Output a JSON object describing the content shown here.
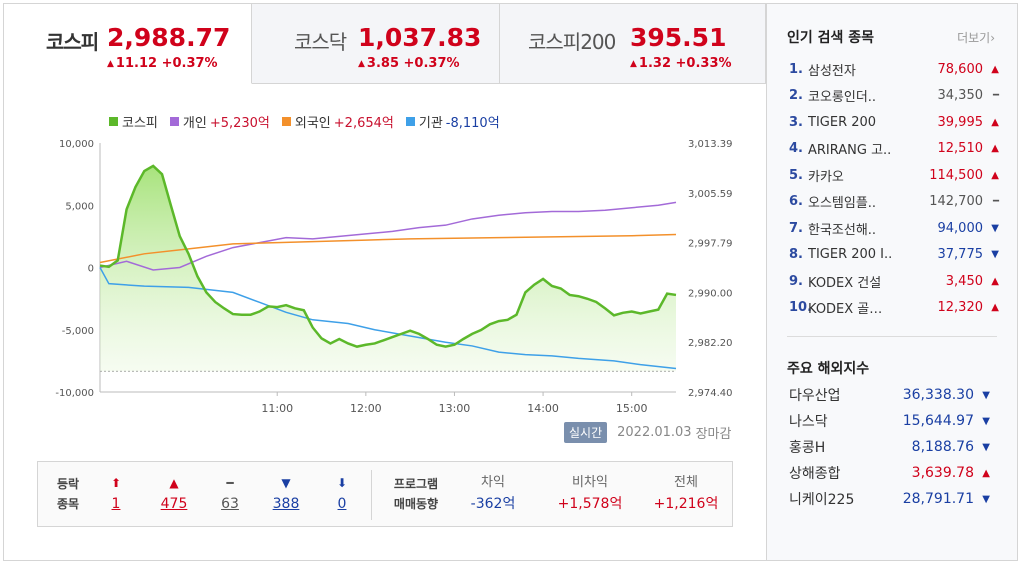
{
  "tabs": [
    {
      "name": "코스피",
      "value": "2,988.77",
      "change": "11.12 +0.37%",
      "dir": "up"
    },
    {
      "name": "코스닥",
      "value": "1,037.83",
      "change": "3.85 +0.37%",
      "dir": "up"
    },
    {
      "name": "코스피200",
      "value": "395.51",
      "change": "1.32 +0.33%",
      "dir": "up"
    }
  ],
  "legend": [
    {
      "name": "코스피",
      "value": "",
      "color": "#5cb82a"
    },
    {
      "name": "개인",
      "value": "+5,230억",
      "color": "#a36ad8"
    },
    {
      "name": "외국인",
      "value": "+2,654억",
      "color": "#f3902b"
    },
    {
      "name": "기관",
      "value": "-8,110억",
      "color": "#3ea0e8"
    }
  ],
  "chart_foot": {
    "realtime": "실시간",
    "date": "2022.01.03",
    "status": "장마감"
  },
  "chart_data": {
    "type": "line",
    "x_ticks": [
      "11:00",
      "12:00",
      "13:00",
      "14:00",
      "15:00"
    ],
    "y_left_ticks": [
      "10,000",
      "5,000",
      "0",
      "-5,000",
      "-10,000"
    ],
    "y_right_ticks": [
      "3,013.39",
      "3,005.59",
      "2,997.79",
      "2,990.00",
      "2,982.20",
      "2,974.40"
    ],
    "y_left_range": [
      -10000,
      10000
    ],
    "y_right_range": [
      2974.4,
      3013.39
    ],
    "x_range": [
      9.0,
      15.5
    ],
    "kospi_baseline": 2977.65,
    "series": [
      {
        "name": "코스피",
        "axis": "right",
        "color": "#5cb82a",
        "x": [
          9.0,
          9.1,
          9.2,
          9.3,
          9.4,
          9.5,
          9.6,
          9.7,
          9.8,
          9.9,
          10.0,
          10.1,
          10.2,
          10.3,
          10.4,
          10.5,
          10.6,
          10.7,
          10.8,
          10.9,
          11.0,
          11.1,
          11.2,
          11.3,
          11.4,
          11.5,
          11.6,
          11.7,
          11.8,
          11.9,
          12.0,
          12.1,
          12.2,
          12.3,
          12.4,
          12.5,
          12.6,
          12.7,
          12.8,
          12.9,
          13.0,
          13.1,
          13.2,
          13.3,
          13.4,
          13.5,
          13.6,
          13.7,
          13.8,
          13.9,
          14.0,
          14.1,
          14.2,
          14.3,
          14.4,
          14.5,
          14.6,
          14.7,
          14.8,
          14.9,
          15.0,
          15.1,
          15.2,
          15.3,
          15.4,
          15.5
        ],
        "y": [
          2994.2,
          2994.0,
          2995.0,
          3003.0,
          3006.5,
          3009.0,
          3009.8,
          3008.5,
          3003.6,
          2998.8,
          2996.0,
          2992.5,
          2990.0,
          2988.5,
          2987.5,
          2986.6,
          2986.5,
          2986.5,
          2987.0,
          2987.8,
          2987.7,
          2988.0,
          2987.5,
          2987.2,
          2984.5,
          2982.8,
          2982.0,
          2982.7,
          2982.0,
          2981.5,
          2981.8,
          2982.0,
          2982.5,
          2983.0,
          2983.5,
          2984.0,
          2983.5,
          2982.7,
          2981.8,
          2981.5,
          2981.8,
          2982.7,
          2983.5,
          2984.1,
          2985.0,
          2985.5,
          2985.7,
          2986.5,
          2990.0,
          2991.2,
          2992.1,
          2991.0,
          2990.6,
          2989.6,
          2989.4,
          2989.0,
          2988.5,
          2987.5,
          2986.4,
          2986.8,
          2987.0,
          2986.7,
          2987.0,
          2987.3,
          2989.8,
          2989.6
        ]
      },
      {
        "name": "개인",
        "axis": "left",
        "color": "#a36ad8",
        "x": [
          9.0,
          9.3,
          9.6,
          9.9,
          10.2,
          10.5,
          10.8,
          11.1,
          11.4,
          11.7,
          12.0,
          12.3,
          12.6,
          12.9,
          13.2,
          13.5,
          13.8,
          14.1,
          14.4,
          14.7,
          15.0,
          15.3,
          15.5
        ],
        "y": [
          0,
          500,
          -200,
          0,
          900,
          1600,
          2000,
          2400,
          2300,
          2500,
          2700,
          2900,
          3200,
          3400,
          3900,
          4200,
          4400,
          4500,
          4500,
          4600,
          4800,
          5000,
          5230
        ]
      },
      {
        "name": "외국인",
        "axis": "left",
        "color": "#f3902b",
        "x": [
          9.0,
          9.5,
          10.0,
          10.5,
          11.0,
          11.5,
          12.0,
          12.5,
          13.0,
          13.5,
          14.0,
          14.5,
          15.0,
          15.5
        ],
        "y": [
          400,
          1100,
          1500,
          1900,
          2000,
          2100,
          2200,
          2300,
          2350,
          2400,
          2450,
          2500,
          2550,
          2654
        ]
      },
      {
        "name": "기관",
        "axis": "left",
        "color": "#3ea0e8",
        "x": [
          9.0,
          9.1,
          9.5,
          10.0,
          10.5,
          10.8,
          11.1,
          11.4,
          11.8,
          12.1,
          12.5,
          12.9,
          13.2,
          13.5,
          13.8,
          14.1,
          14.4,
          14.8,
          15.1,
          15.5
        ],
        "y": [
          0,
          -1300,
          -1500,
          -1600,
          -2000,
          -2800,
          -3600,
          -4200,
          -4500,
          -5000,
          -5500,
          -6000,
          -6300,
          -6800,
          -7000,
          -7100,
          -7300,
          -7500,
          -7800,
          -8110
        ]
      }
    ]
  },
  "stats": {
    "updown_label": [
      "등락",
      "종목"
    ],
    "counts": [
      {
        "arrow": "⬆",
        "value": "1",
        "dir": "up"
      },
      {
        "arrow": "▲",
        "value": "475",
        "dir": "up"
      },
      {
        "arrow": "━",
        "value": "63",
        "dir": "flat"
      },
      {
        "arrow": "▼",
        "value": "388",
        "dir": "dn"
      },
      {
        "arrow": "⬇",
        "value": "0",
        "dir": "dn"
      }
    ],
    "program_label": [
      "프로그램",
      "매매동향"
    ],
    "program": [
      {
        "head": "차익",
        "value": "-362억",
        "dir": "dn"
      },
      {
        "head": "비차익",
        "value": "+1,578억",
        "dir": "up"
      },
      {
        "head": "전체",
        "value": "+1,216억",
        "dir": "up"
      }
    ]
  },
  "popular": {
    "title": "인기 검색 종목",
    "more": "더보기",
    "items": [
      {
        "rank": "1.",
        "name": "삼성전자",
        "price": "78,600",
        "dir": "up"
      },
      {
        "rank": "2.",
        "name": "코오롱인더..",
        "price": "34,350",
        "dir": "flat"
      },
      {
        "rank": "3.",
        "name": "TIGER 200",
        "price": "39,995",
        "dir": "up"
      },
      {
        "rank": "4.",
        "name": "ARIRANG 고..",
        "price": "12,510",
        "dir": "up"
      },
      {
        "rank": "5.",
        "name": "카카오",
        "price": "114,500",
        "dir": "up"
      },
      {
        "rank": "6.",
        "name": "오스템임플..",
        "price": "142,700",
        "dir": "flat"
      },
      {
        "rank": "7.",
        "name": "한국조선해..",
        "price": "94,000",
        "dir": "dn"
      },
      {
        "rank": "8.",
        "name": "TIGER 200 I..",
        "price": "37,775",
        "dir": "dn"
      },
      {
        "rank": "9.",
        "name": "KODEX 건설",
        "price": "3,450",
        "dir": "up"
      },
      {
        "rank": "10.",
        "name": "KODEX 골…",
        "price": "12,320",
        "dir": "up"
      }
    ]
  },
  "world": {
    "title": "주요 해외지수",
    "items": [
      {
        "name": "다우산업",
        "price": "36,338.30",
        "dir": "dn"
      },
      {
        "name": "나스닥",
        "price": "15,644.97",
        "dir": "dn"
      },
      {
        "name": "홍콩H",
        "price": "8,188.76",
        "dir": "dn"
      },
      {
        "name": "상해종합",
        "price": "3,639.78",
        "dir": "up"
      },
      {
        "name": "니케이225",
        "price": "28,791.71",
        "dir": "dn"
      }
    ]
  }
}
